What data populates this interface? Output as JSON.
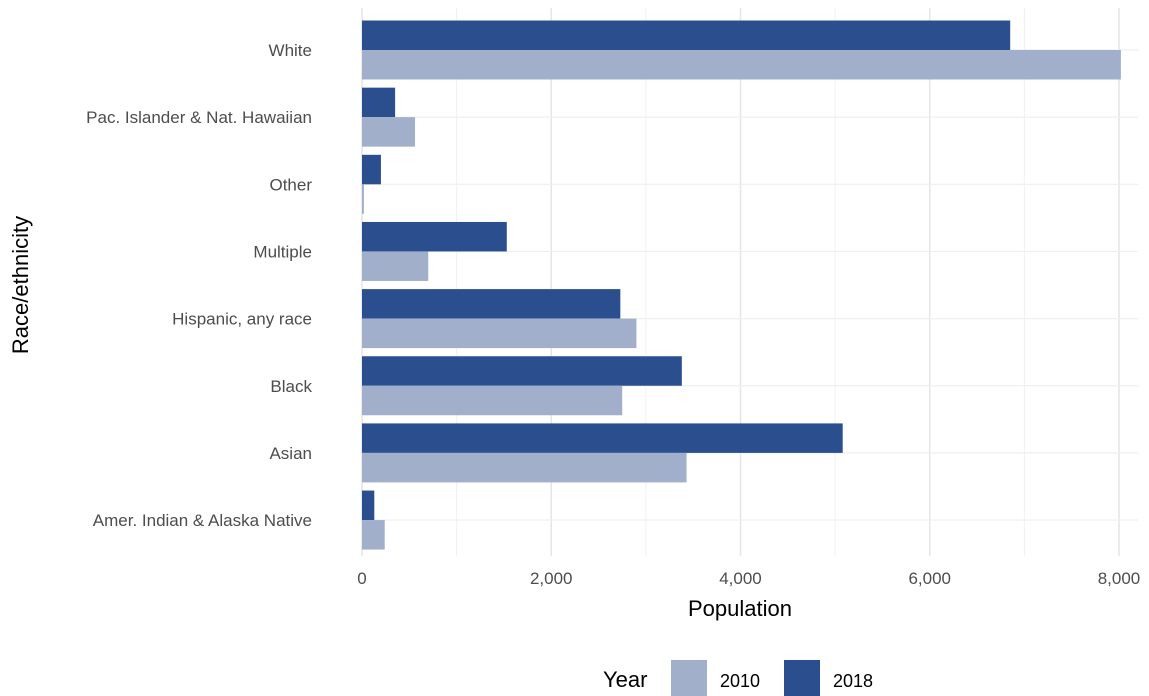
{
  "chart_data": {
    "type": "bar",
    "orientation": "horizontal",
    "categories": [
      "White",
      "Pac. Islander & Nat. Hawaiian",
      "Other",
      "Multiple",
      "Hispanic, any race",
      "Black",
      "Asian",
      "Amer. Indian & Alaska Native"
    ],
    "series": [
      {
        "name": "2018",
        "color": "#2b4f8e",
        "values": [
          6850,
          350,
          200,
          1530,
          2730,
          3380,
          5080,
          130
        ]
      },
      {
        "name": "2010",
        "color": "#a1afcb",
        "values": [
          8020,
          560,
          20,
          700,
          2900,
          2750,
          3430,
          240
        ]
      }
    ],
    "xlabel": "Population",
    "ylabel": "Race/ethnicity",
    "xlim": [
      0,
      8250
    ],
    "xticks": [
      0,
      2000,
      4000,
      6000,
      8000
    ],
    "xtick_labels": [
      "0",
      "2,000",
      "4,000",
      "6,000",
      "8,000"
    ],
    "grid": true,
    "legend": {
      "title": "Year",
      "position": "bottom",
      "items": [
        {
          "label": "2010",
          "color": "#a1afcb"
        },
        {
          "label": "2018",
          "color": "#2b4f8e"
        }
      ]
    }
  }
}
